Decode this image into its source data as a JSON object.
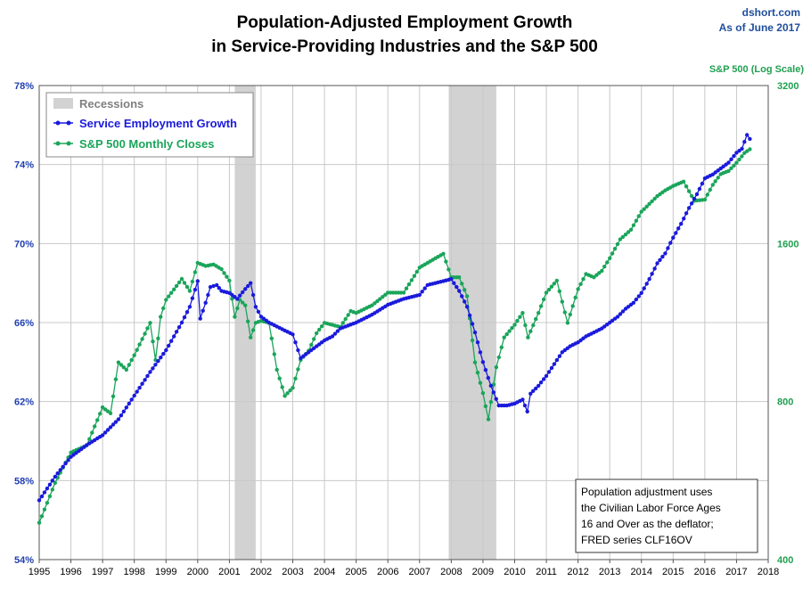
{
  "header": {
    "title_line1": "Population-Adjusted Employment Growth",
    "title_line2": "in Service-Providing Industries and the S&P 500",
    "source": "dshort.com",
    "as_of": "As of June 2017"
  },
  "colors": {
    "employment": "#1a1adc",
    "sp500": "#1aa55a",
    "recession": "#d2d2d2",
    "grid": "#c8c8c8"
  },
  "legend": {
    "recessions": "Recessions",
    "employment": "Service Employment Growth",
    "sp500": "S&P 500 Monthly Closes"
  },
  "note": {
    "lines": [
      "Population adjustment uses",
      "the Civilian Labor Force Ages",
      "16 and Over as the deflator;",
      "FRED series  CLF16OV"
    ]
  },
  "chart_data": {
    "type": "line",
    "x_axis": {
      "min": 1995,
      "max": 2018,
      "ticks": [
        1995,
        1996,
        1997,
        1998,
        1999,
        2000,
        2001,
        2002,
        2003,
        2004,
        2005,
        2006,
        2007,
        2008,
        2009,
        2010,
        2011,
        2012,
        2013,
        2014,
        2015,
        2016,
        2017,
        2018
      ]
    },
    "y_left": {
      "min": 54,
      "max": 78,
      "ticks": [
        54,
        58,
        62,
        66,
        70,
        74,
        78
      ],
      "tick_labels": [
        "54%",
        "58%",
        "62%",
        "66%",
        "70%",
        "74%",
        "78%"
      ]
    },
    "y_right": {
      "title": "S&P 500 (Log Scale)",
      "scale": "log",
      "min": 400,
      "max": 3200,
      "ticks": [
        400,
        800,
        1600,
        3200
      ],
      "tick_labels": [
        "400",
        "800",
        "1600",
        "3200"
      ]
    },
    "grid": true,
    "legend_position": "top-left",
    "recessions": [
      {
        "start": 2001.17,
        "end": 2001.83
      },
      {
        "start": 2007.92,
        "end": 2009.42
      }
    ],
    "series": [
      {
        "name": "Service Employment Growth",
        "axis": "left",
        "points": [
          [
            1995.0,
            57.0
          ],
          [
            1995.5,
            58.2
          ],
          [
            1996.0,
            59.2
          ],
          [
            1996.5,
            59.8
          ],
          [
            1997.0,
            60.3
          ],
          [
            1997.5,
            61.1
          ],
          [
            1998.0,
            62.3
          ],
          [
            1998.5,
            63.5
          ],
          [
            1999.0,
            64.6
          ],
          [
            1999.5,
            66.0
          ],
          [
            1999.75,
            66.8
          ],
          [
            2000.0,
            68.1
          ],
          [
            2000.08,
            66.2
          ],
          [
            2000.25,
            67.0
          ],
          [
            2000.4,
            67.8
          ],
          [
            2000.6,
            67.9
          ],
          [
            2000.75,
            67.6
          ],
          [
            2001.0,
            67.5
          ],
          [
            2001.25,
            67.2
          ],
          [
            2001.5,
            67.7
          ],
          [
            2001.67,
            68.0
          ],
          [
            2001.83,
            66.8
          ],
          [
            2002.0,
            66.3
          ],
          [
            2002.25,
            66.0
          ],
          [
            2002.5,
            65.8
          ],
          [
            2002.75,
            65.6
          ],
          [
            2003.0,
            65.4
          ],
          [
            2003.25,
            64.2
          ],
          [
            2003.5,
            64.5
          ],
          [
            2003.75,
            64.8
          ],
          [
            2004.0,
            65.1
          ],
          [
            2004.25,
            65.3
          ],
          [
            2004.5,
            65.7
          ],
          [
            2005.0,
            66.0
          ],
          [
            2005.5,
            66.4
          ],
          [
            2006.0,
            66.9
          ],
          [
            2006.5,
            67.2
          ],
          [
            2007.0,
            67.4
          ],
          [
            2007.25,
            67.9
          ],
          [
            2007.5,
            68.0
          ],
          [
            2007.75,
            68.1
          ],
          [
            2008.0,
            68.2
          ],
          [
            2008.25,
            67.6
          ],
          [
            2008.5,
            66.8
          ],
          [
            2008.75,
            65.5
          ],
          [
            2009.0,
            64.0
          ],
          [
            2009.25,
            62.8
          ],
          [
            2009.5,
            61.8
          ],
          [
            2009.75,
            61.8
          ],
          [
            2010.0,
            61.9
          ],
          [
            2010.25,
            62.1
          ],
          [
            2010.4,
            61.5
          ],
          [
            2010.5,
            62.4
          ],
          [
            2010.75,
            62.8
          ],
          [
            2011.0,
            63.3
          ],
          [
            2011.25,
            63.9
          ],
          [
            2011.5,
            64.5
          ],
          [
            2011.75,
            64.8
          ],
          [
            2012.0,
            65.0
          ],
          [
            2012.25,
            65.3
          ],
          [
            2012.5,
            65.5
          ],
          [
            2012.75,
            65.7
          ],
          [
            2013.0,
            66.0
          ],
          [
            2013.25,
            66.3
          ],
          [
            2013.5,
            66.7
          ],
          [
            2013.75,
            67.0
          ],
          [
            2014.0,
            67.5
          ],
          [
            2014.25,
            68.2
          ],
          [
            2014.5,
            69.0
          ],
          [
            2014.75,
            69.5
          ],
          [
            2015.0,
            70.3
          ],
          [
            2015.25,
            71.0
          ],
          [
            2015.5,
            71.8
          ],
          [
            2015.75,
            72.5
          ],
          [
            2016.0,
            73.3
          ],
          [
            2016.25,
            73.5
          ],
          [
            2016.5,
            73.8
          ],
          [
            2016.75,
            74.1
          ],
          [
            2017.0,
            74.6
          ],
          [
            2017.17,
            74.8
          ],
          [
            2017.33,
            75.5
          ],
          [
            2017.42,
            75.3
          ]
        ]
      },
      {
        "name": "S&P 500 Monthly Closes",
        "axis": "right",
        "points": [
          [
            1995.0,
            470
          ],
          [
            1995.5,
            560
          ],
          [
            1996.0,
            640
          ],
          [
            1996.5,
            660
          ],
          [
            1997.0,
            780
          ],
          [
            1997.25,
            760
          ],
          [
            1997.5,
            950
          ],
          [
            1997.75,
            920
          ],
          [
            1998.0,
            980
          ],
          [
            1998.5,
            1130
          ],
          [
            1998.67,
            960
          ],
          [
            1998.83,
            1160
          ],
          [
            1999.0,
            1250
          ],
          [
            1999.5,
            1370
          ],
          [
            1999.75,
            1300
          ],
          [
            2000.0,
            1470
          ],
          [
            2000.25,
            1450
          ],
          [
            2000.5,
            1460
          ],
          [
            2000.75,
            1430
          ],
          [
            2001.0,
            1360
          ],
          [
            2001.17,
            1160
          ],
          [
            2001.33,
            1250
          ],
          [
            2001.5,
            1220
          ],
          [
            2001.67,
            1060
          ],
          [
            2001.83,
            1130
          ],
          [
            2002.0,
            1140
          ],
          [
            2002.25,
            1130
          ],
          [
            2002.5,
            920
          ],
          [
            2002.75,
            820
          ],
          [
            2003.0,
            850
          ],
          [
            2003.25,
            960
          ],
          [
            2003.5,
            1000
          ],
          [
            2003.75,
            1080
          ],
          [
            2004.0,
            1130
          ],
          [
            2004.5,
            1110
          ],
          [
            2004.83,
            1190
          ],
          [
            2005.0,
            1180
          ],
          [
            2005.5,
            1220
          ],
          [
            2006.0,
            1290
          ],
          [
            2006.5,
            1290
          ],
          [
            2007.0,
            1440
          ],
          [
            2007.5,
            1500
          ],
          [
            2007.75,
            1530
          ],
          [
            2008.0,
            1380
          ],
          [
            2008.25,
            1380
          ],
          [
            2008.5,
            1270
          ],
          [
            2008.75,
            950
          ],
          [
            2009.0,
            830
          ],
          [
            2009.17,
            740
          ],
          [
            2009.42,
            930
          ],
          [
            2009.67,
            1060
          ],
          [
            2010.0,
            1120
          ],
          [
            2010.25,
            1180
          ],
          [
            2010.42,
            1060
          ],
          [
            2010.75,
            1180
          ],
          [
            2011.0,
            1290
          ],
          [
            2011.33,
            1360
          ],
          [
            2011.67,
            1130
          ],
          [
            2012.0,
            1310
          ],
          [
            2012.25,
            1400
          ],
          [
            2012.5,
            1380
          ],
          [
            2012.75,
            1420
          ],
          [
            2013.0,
            1500
          ],
          [
            2013.33,
            1630
          ],
          [
            2013.67,
            1700
          ],
          [
            2014.0,
            1840
          ],
          [
            2014.5,
            1970
          ],
          [
            2014.75,
            2020
          ],
          [
            2015.0,
            2060
          ],
          [
            2015.33,
            2100
          ],
          [
            2015.67,
            1930
          ],
          [
            2016.0,
            1940
          ],
          [
            2016.25,
            2070
          ],
          [
            2016.5,
            2170
          ],
          [
            2016.75,
            2200
          ],
          [
            2017.0,
            2280
          ],
          [
            2017.25,
            2380
          ],
          [
            2017.42,
            2420
          ]
        ]
      }
    ]
  }
}
